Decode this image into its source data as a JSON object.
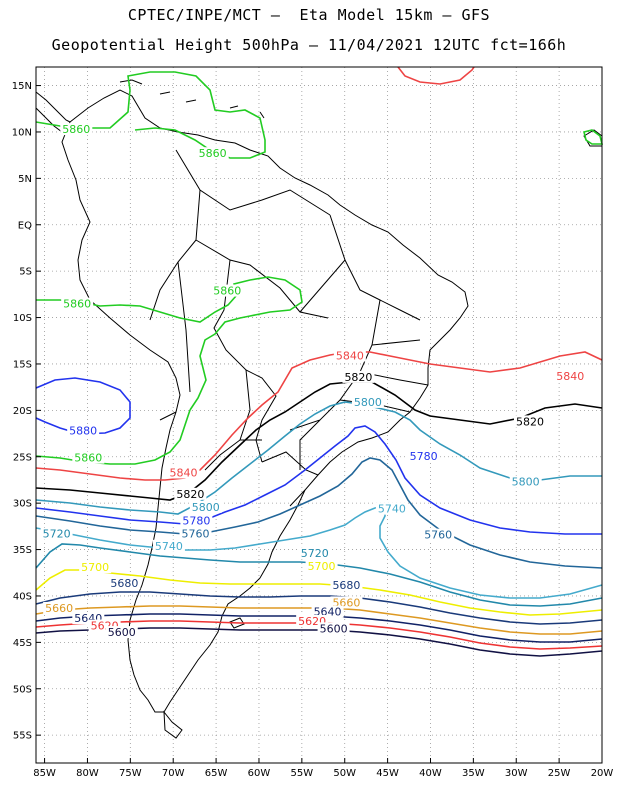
{
  "header": {
    "line1": "CPTEC/INPE/MCT –  Eta Model 15km – GFS",
    "line2": "Geopotential Height 500hPa – 11/04/2021 12UTC fct=166h"
  },
  "axes": {
    "lat_labels": [
      "15N",
      "10N",
      "5N",
      "EQ",
      "5S",
      "10S",
      "15S",
      "20S",
      "25S",
      "30S",
      "35S",
      "40S",
      "45S",
      "50S",
      "55S"
    ],
    "lat_values": [
      15,
      10,
      5,
      0,
      -5,
      -10,
      -15,
      -20,
      -25,
      -30,
      -35,
      -40,
      -45,
      -50,
      -55
    ],
    "lon_labels": [
      "85W",
      "80W",
      "75W",
      "70W",
      "65W",
      "60W",
      "55W",
      "50W",
      "45W",
      "40W",
      "35W",
      "30W",
      "25W",
      "20W"
    ],
    "lon_values": [
      -85,
      -80,
      -75,
      -70,
      -65,
      -60,
      -55,
      -50,
      -45,
      -40,
      -35,
      -30,
      -25,
      -20
    ],
    "lat_range": [
      -58,
      17
    ],
    "lon_range": [
      -86,
      -20
    ],
    "grid": true
  },
  "contours": [
    {
      "level": "5860",
      "color": "#22cc22"
    },
    {
      "level": "5840",
      "color": "#ee4444"
    },
    {
      "level": "5820",
      "color": "#000000"
    },
    {
      "level": "5800",
      "color": "#3399bb"
    },
    {
      "level": "5780",
      "color": "#2233ee"
    },
    {
      "level": "5760",
      "color": "#226699"
    },
    {
      "level": "5740",
      "color": "#44aacc"
    },
    {
      "level": "5720",
      "color": "#2288aa"
    },
    {
      "level": "5700",
      "color": "#eeee00"
    },
    {
      "level": "5680",
      "color": "#1a3a7a"
    },
    {
      "level": "5660",
      "color": "#dd9922"
    },
    {
      "level": "5640",
      "color": "#112266"
    },
    {
      "level": "5620",
      "color": "#ee3333"
    },
    {
      "level": "5600",
      "color": "#111144"
    }
  ],
  "contour_labels": [
    {
      "text": "5860",
      "color": "#22cc22",
      "lon": -81.3,
      "lat": 10.2
    },
    {
      "text": "5860",
      "color": "#22cc22",
      "lon": -65.4,
      "lat": 7.6
    },
    {
      "text": "5860",
      "color": "#22cc22",
      "lon": -81.2,
      "lat": -8.6
    },
    {
      "text": "5860",
      "color": "#22cc22",
      "lon": -63.7,
      "lat": -7.2
    },
    {
      "text": "5880",
      "color": "#2233ee",
      "lon": -80.5,
      "lat": -22.3
    },
    {
      "text": "5860",
      "color": "#22cc22",
      "lon": -79.9,
      "lat": -25.2
    },
    {
      "text": "5840",
      "color": "#ee4444",
      "lon": -49.4,
      "lat": -14.2
    },
    {
      "text": "5820",
      "color": "#000000",
      "lon": -48.4,
      "lat": -16.5
    },
    {
      "text": "5840",
      "color": "#ee4444",
      "lon": -23.7,
      "lat": -16.4
    },
    {
      "text": "5800",
      "color": "#3399bb",
      "lon": -47.3,
      "lat": -19.2
    },
    {
      "text": "5820",
      "color": "#000000",
      "lon": -28.4,
      "lat": -21.3
    },
    {
      "text": "5780",
      "color": "#2233ee",
      "lon": -40.8,
      "lat": -25.0
    },
    {
      "text": "5800",
      "color": "#3399bb",
      "lon": -28.9,
      "lat": -27.8
    },
    {
      "text": "5840",
      "color": "#ee4444",
      "lon": -68.8,
      "lat": -26.8
    },
    {
      "text": "5820",
      "color": "#000000",
      "lon": -68.0,
      "lat": -29.1
    },
    {
      "text": "5800",
      "color": "#3399bb",
      "lon": -66.2,
      "lat": -30.5
    },
    {
      "text": "5740",
      "color": "#44aacc",
      "lon": -44.5,
      "lat": -30.7
    },
    {
      "text": "5780",
      "color": "#2233ee",
      "lon": -67.3,
      "lat": -32.0
    },
    {
      "text": "5760",
      "color": "#226699",
      "lon": -67.4,
      "lat": -33.4
    },
    {
      "text": "5760",
      "color": "#226699",
      "lon": -39.1,
      "lat": -33.5
    },
    {
      "text": "5720",
      "color": "#2288aa",
      "lon": -83.6,
      "lat": -33.4
    },
    {
      "text": "5740",
      "color": "#44aacc",
      "lon": -70.5,
      "lat": -34.7
    },
    {
      "text": "5720",
      "color": "#2288aa",
      "lon": -53.5,
      "lat": -35.5
    },
    {
      "text": "5700",
      "color": "#eeee00",
      "lon": -79.1,
      "lat": -37.0
    },
    {
      "text": "5700",
      "color": "#eeee00",
      "lon": -52.7,
      "lat": -36.9
    },
    {
      "text": "5680",
      "color": "#1a3a7a",
      "lon": -75.7,
      "lat": -38.7
    },
    {
      "text": "5680",
      "color": "#1a3a7a",
      "lon": -49.8,
      "lat": -38.9
    },
    {
      "text": "5660",
      "color": "#dd9922",
      "lon": -83.3,
      "lat": -41.4
    },
    {
      "text": "5660",
      "color": "#dd9922",
      "lon": -49.8,
      "lat": -40.8
    },
    {
      "text": "5640",
      "color": "#112266",
      "lon": -79.9,
      "lat": -42.5
    },
    {
      "text": "5640",
      "color": "#112266",
      "lon": -52.0,
      "lat": -41.8
    },
    {
      "text": "5620",
      "color": "#ee3333",
      "lon": -78.0,
      "lat": -43.3
    },
    {
      "text": "5620",
      "color": "#ee3333",
      "lon": -53.8,
      "lat": -42.8
    },
    {
      "text": "5600",
      "color": "#111144",
      "lon": -76.0,
      "lat": -44.0
    },
    {
      "text": "5600",
      "color": "#111144",
      "lon": -51.3,
      "lat": -43.6
    }
  ]
}
